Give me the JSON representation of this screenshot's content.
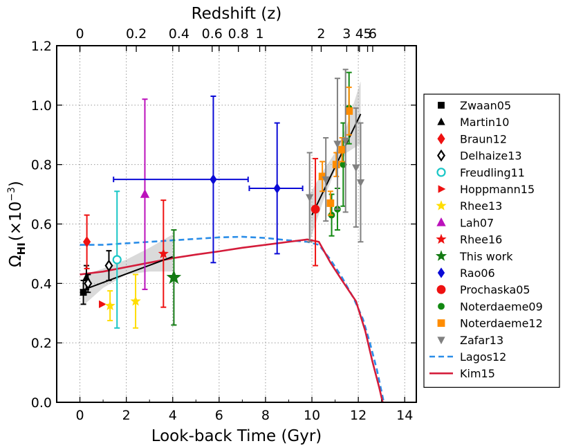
{
  "chart_data": {
    "type": "scatter",
    "xlabel": "Look-back Time (Gyr)",
    "ylabel": "Ω",
    "ylabel_sub": "HI",
    "ylabel_unit": "(×10",
    "ylabel_exp": "−3",
    "ylabel_close": ")",
    "top_xlabel": "Redshift (z)",
    "xlim": [
      -1,
      14.5
    ],
    "ylim": [
      0.0,
      1.2
    ],
    "x_ticks": [
      0,
      2,
      4,
      6,
      8,
      10,
      12,
      14
    ],
    "x_tick_labels": [
      "0",
      "2",
      "4",
      "6",
      "8",
      "10",
      "12",
      "14"
    ],
    "y_ticks": [
      0.0,
      0.2,
      0.4,
      0.6,
      0.8,
      1.0,
      1.2
    ],
    "y_tick_labels": [
      "0.0",
      "0.2",
      "0.4",
      "0.6",
      "0.8",
      "1.0",
      "1.2"
    ],
    "top_ticks": [
      {
        "z": 0,
        "label": "0",
        "t": 0
      },
      {
        "z": 0.2,
        "label": "0.2",
        "t": 2.43
      },
      {
        "z": 0.4,
        "label": "0.4",
        "t": 4.27
      },
      {
        "z": 0.6,
        "label": "0.6",
        "t": 5.7
      },
      {
        "z": 0.8,
        "label": "0.8",
        "t": 6.83
      },
      {
        "z": 1,
        "label": "1",
        "t": 7.75
      },
      {
        "z": 2,
        "label": "2",
        "t": 10.4
      },
      {
        "z": 3,
        "label": "3",
        "t": 11.5
      },
      {
        "z": 4,
        "label": "4",
        "t": 12.05
      },
      {
        "z": 5,
        "label": "5",
        "t": 12.4
      },
      {
        "z": 6,
        "label": "6",
        "t": 12.62
      }
    ],
    "grid": true,
    "legend_position": "right, outside",
    "series": [
      {
        "name": "Zwaan05",
        "marker": "square",
        "color": "#000000",
        "filled": true,
        "size": 9,
        "points": [
          {
            "x": 0.15,
            "y": 0.37,
            "yerr": [
              0.04,
              0.04
            ]
          }
        ]
      },
      {
        "name": "Martin10",
        "marker": "triangle",
        "color": "#000000",
        "filled": true,
        "size": 10,
        "points": [
          {
            "x": 0.28,
            "y": 0.42,
            "yerr": [
              0.04,
              0.04
            ]
          }
        ]
      },
      {
        "name": "Braun12",
        "marker": "diamond",
        "color": "#ee1111",
        "filled": true,
        "size": 12,
        "points": [
          {
            "x": 0.3,
            "y": 0.54,
            "yerr": [
              0.09,
              0.09
            ]
          }
        ]
      },
      {
        "name": "Delhaize13",
        "marker": "diamond",
        "color": "#000000",
        "filled": false,
        "size": 11,
        "points": [
          {
            "x": 0.35,
            "y": 0.4,
            "yerr": [
              0.03,
              0.03
            ]
          },
          {
            "x": 1.25,
            "y": 0.46,
            "yerr": [
              0.05,
              0.05
            ]
          }
        ]
      },
      {
        "name": "Freudling11",
        "marker": "circle",
        "color": "#19c6c6",
        "filled": false,
        "size": 11,
        "points": [
          {
            "x": 1.6,
            "y": 0.48,
            "yerr": [
              0.23,
              0.23
            ]
          }
        ]
      },
      {
        "name": "Hoppmann15",
        "marker": "triangle-right",
        "color": "#ee1111",
        "filled": true,
        "size": 10,
        "points": [
          {
            "x": 0.95,
            "y": 0.33,
            "yerr": [
              0,
              0
            ]
          }
        ]
      },
      {
        "name": "Rhee13",
        "marker": "star",
        "color": "#ffdd00",
        "filled": true,
        "size": 13,
        "points": [
          {
            "x": 1.3,
            "y": 0.325,
            "yerr": [
              0.05,
              0.05
            ]
          },
          {
            "x": 2.4,
            "y": 0.34,
            "yerr": [
              0.09,
              0.09
            ]
          }
        ]
      },
      {
        "name": "Lah07",
        "marker": "triangle",
        "color": "#bb11bb",
        "filled": true,
        "size": 12,
        "points": [
          {
            "x": 2.8,
            "y": 0.7,
            "yerr": [
              0.32,
              0.32
            ]
          }
        ]
      },
      {
        "name": "Rhee16",
        "marker": "star",
        "color": "#ee1111",
        "filled": true,
        "size": 13,
        "points": [
          {
            "x": 3.6,
            "y": 0.5,
            "yerr": [
              0.18,
              0.18
            ]
          }
        ]
      },
      {
        "name": "This work",
        "marker": "star",
        "color": "#137a13",
        "filled": true,
        "size": 19,
        "points": [
          {
            "x": 4.05,
            "y": 0.42,
            "yerr": [
              0.16,
              0.16
            ]
          }
        ]
      },
      {
        "name": "Rao06",
        "marker": "diamond",
        "color": "#0a0ad6",
        "filled": true,
        "size": 11,
        "points": [
          {
            "x": 5.75,
            "y": 0.75,
            "xerr": [
              4.3,
              1.5
            ],
            "yerr": [
              0.28,
              0.28
            ]
          },
          {
            "x": 8.5,
            "y": 0.72,
            "xerr": [
              1.2,
              1.1
            ],
            "yerr": [
              0.22,
              0.22
            ]
          }
        ]
      },
      {
        "name": "Prochaska05",
        "marker": "circle",
        "color": "#ee1111",
        "filled": true,
        "size": 12,
        "points": [
          {
            "x": 10.15,
            "y": 0.65,
            "yerr": [
              0.19,
              0.17
            ]
          }
        ]
      },
      {
        "name": "Noterdaeme09",
        "marker": "circle",
        "color": "#118811",
        "filled": true,
        "size": 9,
        "points": [
          {
            "x": 10.85,
            "y": 0.63,
            "yerr": [
              0.07,
              0.07
            ]
          },
          {
            "x": 11.1,
            "y": 0.65,
            "yerr": [
              0.07,
              0.07
            ]
          },
          {
            "x": 11.35,
            "y": 0.8,
            "yerr": [
              0.14,
              0.14
            ]
          },
          {
            "x": 11.6,
            "y": 0.99,
            "yerr": [
              0.12,
              0.12
            ]
          }
        ]
      },
      {
        "name": "Noterdaeme12",
        "marker": "square",
        "color": "#ff8c00",
        "filled": true,
        "size": 10,
        "points": [
          {
            "x": 10.45,
            "y": 0.76,
            "yerr": [
              0.05,
              0.05
            ]
          },
          {
            "x": 10.8,
            "y": 0.67,
            "yerr": [
              0.04,
              0.04
            ]
          },
          {
            "x": 11.05,
            "y": 0.8,
            "yerr": [
              0.04,
              0.04
            ]
          },
          {
            "x": 11.3,
            "y": 0.85,
            "yerr": [
              0.04,
              0.04
            ]
          },
          {
            "x": 11.6,
            "y": 0.98,
            "yerr": [
              0.08,
              0.08
            ]
          }
        ]
      },
      {
        "name": "Zafar13",
        "marker": "triangle-down",
        "color": "#808080",
        "filled": true,
        "size": 10,
        "points": [
          {
            "x": 9.9,
            "y": 0.69,
            "yerr": [
              0.15,
              0.15
            ]
          },
          {
            "x": 10.6,
            "y": 0.75,
            "yerr": [
              0.14,
              0.14
            ]
          },
          {
            "x": 11.1,
            "y": 0.87,
            "yerr": [
              0.22,
              0.22
            ]
          },
          {
            "x": 11.45,
            "y": 0.88,
            "yerr": [
              0.24,
              0.24
            ]
          },
          {
            "x": 11.9,
            "y": 0.79,
            "yerr": [
              0.2,
              0.2
            ]
          },
          {
            "x": 12.1,
            "y": 0.74,
            "yerr": [
              0.2,
              0.2
            ]
          }
        ]
      },
      {
        "name": "Lagos12",
        "type": "line",
        "style": "dashed",
        "color": "#2a8de8",
        "points": [
          [
            0,
            0.53
          ],
          [
            1,
            0.53
          ],
          [
            2,
            0.535
          ],
          [
            3,
            0.54
          ],
          [
            4,
            0.545
          ],
          [
            5,
            0.55
          ],
          [
            6,
            0.555
          ],
          [
            7,
            0.557
          ],
          [
            8,
            0.553
          ],
          [
            9,
            0.545
          ],
          [
            9.8,
            0.54
          ],
          [
            10.3,
            0.53
          ],
          [
            10.8,
            0.48
          ],
          [
            11.3,
            0.42
          ],
          [
            11.8,
            0.35
          ],
          [
            12.2,
            0.28
          ],
          [
            12.5,
            0.2
          ],
          [
            12.8,
            0.11
          ],
          [
            13.1,
            0.0
          ]
        ]
      },
      {
        "name": "Kim15",
        "type": "line",
        "style": "solid",
        "color": "#d41c3a",
        "points": [
          [
            0,
            0.43
          ],
          [
            1,
            0.44
          ],
          [
            2,
            0.455
          ],
          [
            3,
            0.47
          ],
          [
            4,
            0.485
          ],
          [
            5,
            0.497
          ],
          [
            6,
            0.508
          ],
          [
            7,
            0.52
          ],
          [
            8,
            0.53
          ],
          [
            9,
            0.54
          ],
          [
            9.8,
            0.548
          ],
          [
            10.3,
            0.54
          ],
          [
            10.8,
            0.47
          ],
          [
            11.3,
            0.41
          ],
          [
            11.9,
            0.34
          ],
          [
            12.3,
            0.24
          ],
          [
            12.6,
            0.14
          ],
          [
            12.9,
            0.05
          ],
          [
            13.05,
            0.0
          ]
        ]
      }
    ],
    "fits": [
      {
        "color": "#000000",
        "from": [
          0.2,
          0.38
        ],
        "to": [
          4.0,
          0.49
        ],
        "band": [
          [
            0.2,
            0.33,
            0.43
          ],
          [
            1,
            0.385,
            0.45
          ],
          [
            2,
            0.43,
            0.48
          ],
          [
            3,
            0.44,
            0.52
          ],
          [
            4,
            0.44,
            0.565
          ]
        ]
      },
      {
        "color": "#000000",
        "from": [
          10.0,
          0.63
        ],
        "to": [
          12.1,
          0.97
        ],
        "band": [
          [
            9.9,
            0.54,
            0.7
          ],
          [
            10.5,
            0.68,
            0.78
          ],
          [
            11.0,
            0.78,
            0.84
          ],
          [
            11.5,
            0.84,
            0.93
          ],
          [
            12.1,
            0.87,
            1.08
          ]
        ]
      }
    ]
  }
}
